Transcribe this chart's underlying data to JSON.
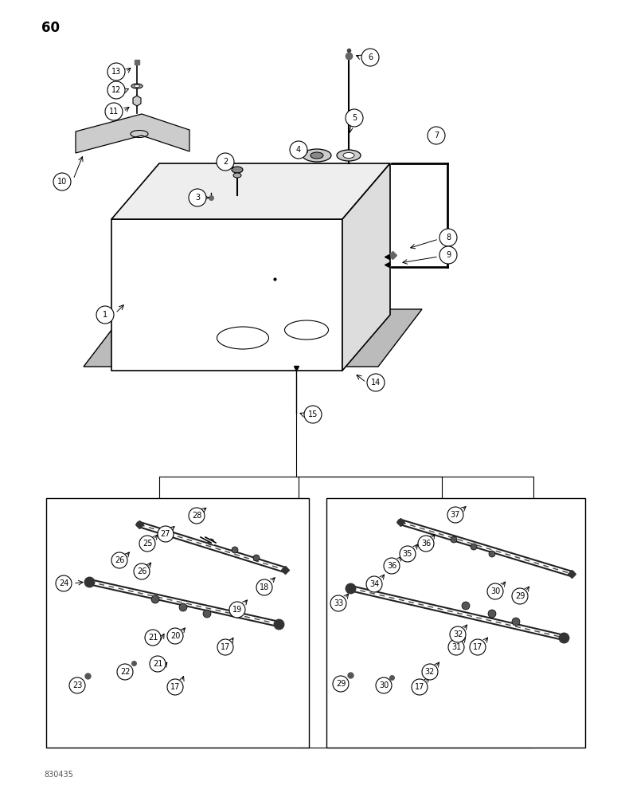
{
  "title": "60",
  "footer": "830435",
  "bg_color": "#ffffff",
  "line_color": "#000000",
  "font_size_title": 12,
  "font_size_footer": 7,
  "font_size_label": 7
}
